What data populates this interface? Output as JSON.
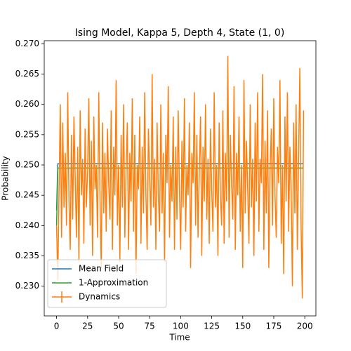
{
  "chart_data": {
    "type": "line",
    "title": "Ising Model, Kappa 5, Depth 4, State (1, 0)",
    "xlabel": "Time",
    "ylabel": "Probability",
    "xlim": [
      -9.95,
      208.95
    ],
    "ylim": [
      0.2251,
      0.2705
    ],
    "xticks": [
      0,
      25,
      50,
      75,
      100,
      125,
      150,
      175,
      200
    ],
    "yticks": [
      {
        "value": 0.23,
        "label": "0.230"
      },
      0.235,
      {
        "value": 0.24,
        "label": "0.240"
      },
      0.245,
      {
        "value": 0.25,
        "label": "0.250"
      },
      0.255,
      {
        "value": 0.26,
        "label": "0.260"
      },
      0.265,
      {
        "value": 0.27,
        "label": "0.270"
      }
    ],
    "legend": "lower left",
    "x": [
      0,
      1,
      2,
      3,
      4,
      5,
      6,
      7,
      8,
      9,
      10,
      11,
      12,
      13,
      14,
      15,
      16,
      17,
      18,
      19,
      20,
      21,
      22,
      23,
      24,
      25,
      26,
      27,
      28,
      29,
      30,
      31,
      32,
      33,
      34,
      35,
      36,
      37,
      38,
      39,
      40,
      41,
      42,
      43,
      44,
      45,
      46,
      47,
      48,
      49,
      50,
      51,
      52,
      53,
      54,
      55,
      56,
      57,
      58,
      59,
      60,
      61,
      62,
      63,
      64,
      65,
      66,
      67,
      68,
      69,
      70,
      71,
      72,
      73,
      74,
      75,
      76,
      77,
      78,
      79,
      80,
      81,
      82,
      83,
      84,
      85,
      86,
      87,
      88,
      89,
      90,
      91,
      92,
      93,
      94,
      95,
      96,
      97,
      98,
      99,
      100,
      101,
      102,
      103,
      104,
      105,
      106,
      107,
      108,
      109,
      110,
      111,
      112,
      113,
      114,
      115,
      116,
      117,
      118,
      119,
      120,
      121,
      122,
      123,
      124,
      125,
      126,
      127,
      128,
      129,
      130,
      131,
      132,
      133,
      134,
      135,
      136,
      137,
      138,
      139,
      140,
      141,
      142,
      143,
      144,
      145,
      146,
      147,
      148,
      149,
      150,
      151,
      152,
      153,
      154,
      155,
      156,
      157,
      158,
      159,
      160,
      161,
      162,
      163,
      164,
      165,
      166,
      167,
      168,
      169,
      170,
      171,
      172,
      173,
      174,
      175,
      176,
      177,
      178,
      179,
      180,
      181,
      182,
      183,
      184,
      185,
      186,
      187,
      188,
      189,
      190,
      191,
      192,
      193,
      194,
      195,
      196,
      197,
      198,
      199
    ],
    "series": [
      {
        "name": "Mean Field",
        "color": "#1f77b4",
        "values": [
          0.2425,
          0.2502,
          0.2502,
          0.2502,
          0.2502,
          0.2502,
          0.2502,
          0.2502,
          0.2502,
          0.2502,
          0.2502,
          0.2502,
          0.2502,
          0.2502,
          0.2502,
          0.2502,
          0.2502,
          0.2502,
          0.2502,
          0.2502,
          0.2502,
          0.2502,
          0.2502,
          0.2502,
          0.2502,
          0.2502,
          0.2502,
          0.2502,
          0.2502,
          0.2502,
          0.2502,
          0.2502,
          0.2502,
          0.2502,
          0.2502,
          0.2502,
          0.2502,
          0.2502,
          0.2502,
          0.2502,
          0.2502,
          0.2502,
          0.2502,
          0.2502,
          0.2502,
          0.2502,
          0.2502,
          0.2502,
          0.2502,
          0.2502,
          0.2502,
          0.2502,
          0.2502,
          0.2502,
          0.2502,
          0.2502,
          0.2502,
          0.2502,
          0.2502,
          0.2502,
          0.2502,
          0.2502,
          0.2502,
          0.2502,
          0.2502,
          0.2502,
          0.2502,
          0.2502,
          0.2502,
          0.2502,
          0.2502,
          0.2502,
          0.2502,
          0.2502,
          0.2502,
          0.2502,
          0.2502,
          0.2502,
          0.2502,
          0.2502,
          0.2502,
          0.2502,
          0.2502,
          0.2502,
          0.2502,
          0.2502,
          0.2502,
          0.2502,
          0.2502,
          0.2502,
          0.2502,
          0.2502,
          0.2502,
          0.2502,
          0.2502,
          0.2502,
          0.2502,
          0.2502,
          0.2502,
          0.2502,
          0.2502,
          0.2502,
          0.2502,
          0.2502,
          0.2502,
          0.2502,
          0.2502,
          0.2502,
          0.2502,
          0.2502,
          0.2502,
          0.2502,
          0.2502,
          0.2502,
          0.2502,
          0.2502,
          0.2502,
          0.2502,
          0.2502,
          0.2502,
          0.2502,
          0.2502,
          0.2502,
          0.2502,
          0.2502,
          0.2502,
          0.2502,
          0.2502,
          0.2502,
          0.2502,
          0.2502,
          0.2502,
          0.2502,
          0.2502,
          0.2502,
          0.2502,
          0.2502,
          0.2502,
          0.2502,
          0.2502,
          0.2502,
          0.2502,
          0.2502,
          0.2502,
          0.2502,
          0.2502,
          0.2502,
          0.2502,
          0.2502,
          0.2502,
          0.2502,
          0.2502,
          0.2502,
          0.2502,
          0.2502,
          0.2502,
          0.2502,
          0.2502,
          0.2502,
          0.2502,
          0.2502,
          0.2502,
          0.2502,
          0.2502,
          0.2502,
          0.2502,
          0.2502,
          0.2502,
          0.2502,
          0.2502,
          0.2502,
          0.2502,
          0.2502,
          0.2502,
          0.2502,
          0.2502,
          0.2502,
          0.2502,
          0.2502,
          0.2502,
          0.2502,
          0.2502,
          0.2502,
          0.2502,
          0.2502,
          0.2502,
          0.2502,
          0.2502,
          0.2502,
          0.2502,
          0.2502,
          0.2502,
          0.2502,
          0.2502,
          0.2502,
          0.2502,
          0.2502,
          0.2502,
          0.2502,
          0.2502
        ]
      },
      {
        "name": "1-Approximation",
        "color": "#2ca02c",
        "values": [
          0.24,
          0.2495,
          0.2495,
          0.2495,
          0.2495,
          0.2495,
          0.2495,
          0.2495,
          0.2495,
          0.2495,
          0.2495,
          0.2495,
          0.2495,
          0.2495,
          0.2495,
          0.2495,
          0.2495,
          0.2495,
          0.2495,
          0.2495,
          0.2495,
          0.2495,
          0.2495,
          0.2495,
          0.2495,
          0.2495,
          0.2495,
          0.2495,
          0.2495,
          0.2495,
          0.2495,
          0.2495,
          0.2495,
          0.2495,
          0.2495,
          0.2495,
          0.2495,
          0.2495,
          0.2495,
          0.2495,
          0.2495,
          0.2495,
          0.2495,
          0.2495,
          0.2495,
          0.2495,
          0.2495,
          0.2495,
          0.2495,
          0.2495,
          0.2495,
          0.2495,
          0.2495,
          0.2495,
          0.2495,
          0.2495,
          0.2495,
          0.2495,
          0.2495,
          0.2495,
          0.2495,
          0.2495,
          0.2495,
          0.2495,
          0.2495,
          0.2495,
          0.2495,
          0.2495,
          0.2495,
          0.2495,
          0.2495,
          0.2495,
          0.2495,
          0.2495,
          0.2495,
          0.2495,
          0.2495,
          0.2495,
          0.2495,
          0.2495,
          0.2495,
          0.2495,
          0.2495,
          0.2495,
          0.2495,
          0.2495,
          0.2495,
          0.2495,
          0.2495,
          0.2495,
          0.2495,
          0.2495,
          0.2495,
          0.2495,
          0.2495,
          0.2495,
          0.2495,
          0.2495,
          0.2495,
          0.2495,
          0.2495,
          0.2495,
          0.2495,
          0.2495,
          0.2495,
          0.2495,
          0.2495,
          0.2495,
          0.2495,
          0.2495,
          0.2495,
          0.2495,
          0.2495,
          0.2495,
          0.2495,
          0.2495,
          0.2495,
          0.2495,
          0.2495,
          0.2495,
          0.2495,
          0.2495,
          0.2495,
          0.2495,
          0.2495,
          0.2495,
          0.2495,
          0.2495,
          0.2495,
          0.2495,
          0.2495,
          0.2495,
          0.2495,
          0.2495,
          0.2495,
          0.2495,
          0.2495,
          0.2495,
          0.2495,
          0.2495,
          0.2495,
          0.2495,
          0.2495,
          0.2495,
          0.2495,
          0.2495,
          0.2495,
          0.2495,
          0.2495,
          0.2495,
          0.2495,
          0.2495,
          0.2495,
          0.2495,
          0.2495,
          0.2495,
          0.2495,
          0.2495,
          0.2495,
          0.2495,
          0.2495,
          0.2495,
          0.2495,
          0.2495,
          0.2495,
          0.2495,
          0.2495,
          0.2495,
          0.2495,
          0.2495,
          0.2495,
          0.2495,
          0.2495,
          0.2495,
          0.2495,
          0.2495,
          0.2495,
          0.2495,
          0.2495,
          0.2495,
          0.2495,
          0.2495,
          0.2495,
          0.2495,
          0.2495,
          0.2495,
          0.2495,
          0.2495,
          0.2495,
          0.2495,
          0.2495,
          0.2495,
          0.2495,
          0.2495,
          0.2495,
          0.2495,
          0.2495,
          0.2495,
          0.2495,
          0.2495
        ]
      },
      {
        "name": "Dynamics",
        "color": "#ff7f0e",
        "values": [
          0.24,
          0.231,
          0.246,
          0.26,
          0.238,
          0.257,
          0.243,
          0.252,
          0.24,
          0.262,
          0.244,
          0.236,
          0.255,
          0.241,
          0.258,
          0.248,
          0.238,
          0.253,
          0.234,
          0.259,
          0.245,
          0.251,
          0.237,
          0.256,
          0.243,
          0.249,
          0.261,
          0.24,
          0.254,
          0.235,
          0.258,
          0.246,
          0.25,
          0.238,
          0.262,
          0.244,
          0.233,
          0.257,
          0.242,
          0.252,
          0.239,
          0.256,
          0.247,
          0.241,
          0.259,
          0.236,
          0.253,
          0.245,
          0.264,
          0.24,
          0.25,
          0.234,
          0.255,
          0.243,
          0.26,
          0.238,
          0.249,
          0.257,
          0.236,
          0.252,
          0.244,
          0.261,
          0.239,
          0.255,
          0.232,
          0.25,
          0.246,
          0.258,
          0.237,
          0.253,
          0.242,
          0.262,
          0.245,
          0.236,
          0.256,
          0.248,
          0.24,
          0.265,
          0.243,
          0.251,
          0.236,
          0.257,
          0.245,
          0.239,
          0.26,
          0.242,
          0.252,
          0.234,
          0.255,
          0.247,
          0.263,
          0.238,
          0.25,
          0.244,
          0.258,
          0.236,
          0.253,
          0.241,
          0.259,
          0.246,
          0.236,
          0.254,
          0.243,
          0.261,
          0.239,
          0.25,
          0.245,
          0.257,
          0.233,
          0.252,
          0.247,
          0.262,
          0.24,
          0.255,
          0.238,
          0.249,
          0.258,
          0.235,
          0.253,
          0.244,
          0.26,
          0.241,
          0.251,
          0.237,
          0.256,
          0.246,
          0.239,
          0.262,
          0.243,
          0.25,
          0.235,
          0.257,
          0.245,
          0.24,
          0.259,
          0.237,
          0.252,
          0.244,
          0.268,
          0.238,
          0.255,
          0.247,
          0.241,
          0.263,
          0.236,
          0.252,
          0.245,
          0.258,
          0.239,
          0.25,
          0.233,
          0.264,
          0.242,
          0.254,
          0.246,
          0.237,
          0.26,
          0.243,
          0.251,
          0.235,
          0.257,
          0.244,
          0.262,
          0.239,
          0.251,
          0.247,
          0.265,
          0.236,
          0.254,
          0.242,
          0.259,
          0.233,
          0.249,
          0.256,
          0.24,
          0.261,
          0.245,
          0.238,
          0.253,
          0.247,
          0.264,
          0.237,
          0.25,
          0.232,
          0.258,
          0.244,
          0.262,
          0.239,
          0.253,
          0.246,
          0.23,
          0.257,
          0.242,
          0.26,
          0.236,
          0.251,
          0.266,
          0.24,
          0.228,
          0.259
        ]
      }
    ]
  }
}
